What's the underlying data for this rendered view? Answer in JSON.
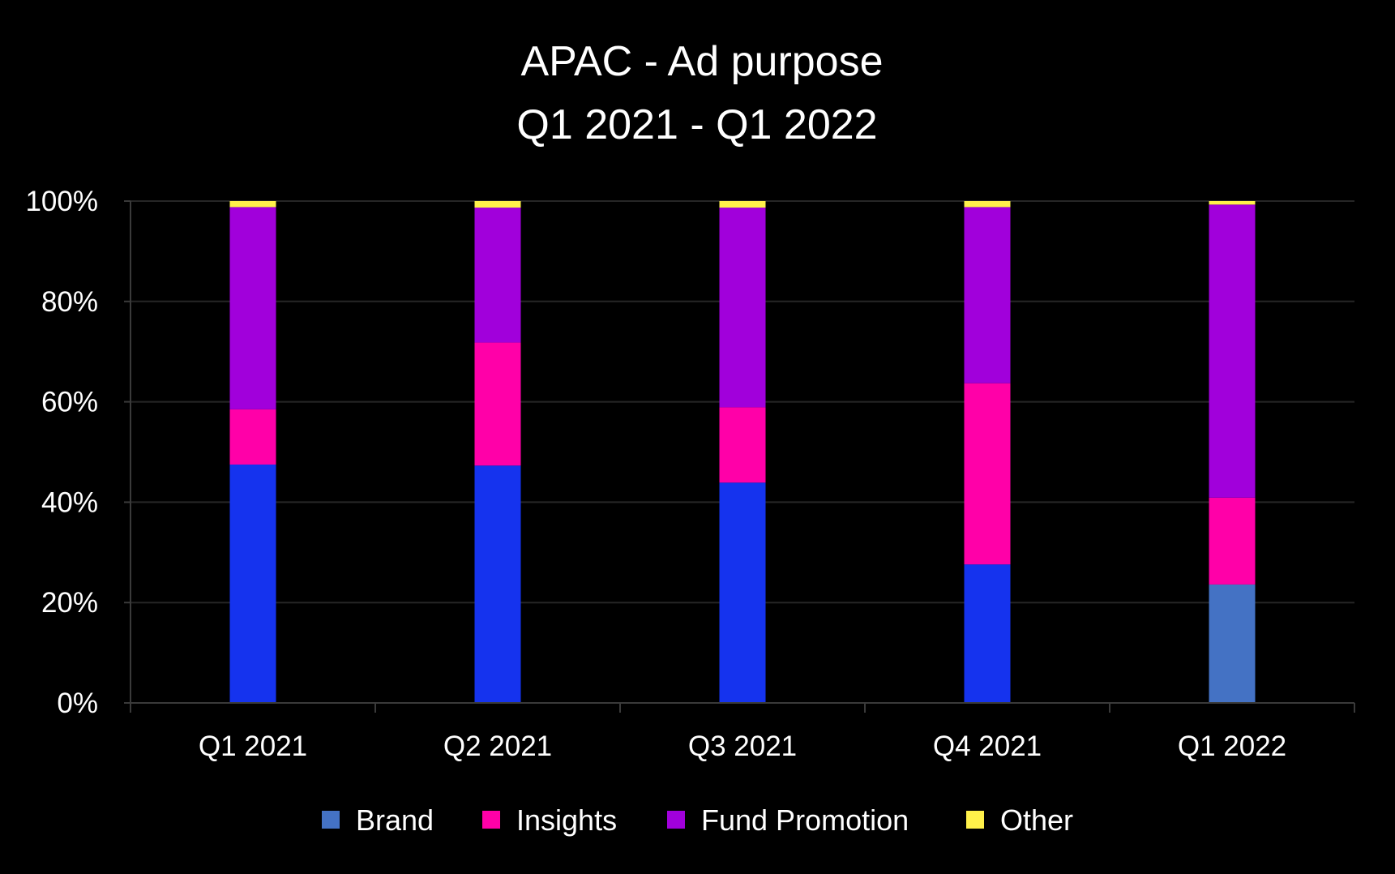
{
  "chart_data": {
    "type": "bar",
    "stacked": true,
    "title": "APAC - Ad purpose",
    "subtitle": "Q1 2021 - Q1 2022",
    "xlabel": "",
    "ylabel": "",
    "ylim": [
      0,
      100
    ],
    "y_ticks": [
      "0%",
      "20%",
      "40%",
      "60%",
      "80%",
      "100%"
    ],
    "grid": true,
    "legend_position": "bottom",
    "categories": [
      "Q1 2021",
      "Q2 2021",
      "Q3 2021",
      "Q4 2021",
      "Q1 2022"
    ],
    "series": [
      {
        "name": "Brand",
        "color": "#4472C4",
        "values": [
          47.5,
          47.3,
          43.9,
          27.6,
          23.6
        ]
      },
      {
        "name": "Insights",
        "color": "#FF00A8",
        "values": [
          11.0,
          24.5,
          15.0,
          36.1,
          17.3
        ]
      },
      {
        "name": "Fund Promotion",
        "color": "#A100DB",
        "values": [
          40.3,
          26.9,
          39.8,
          35.1,
          58.4
        ]
      },
      {
        "name": "Other",
        "color": "#FFF14A",
        "values": [
          1.2,
          1.3,
          1.3,
          1.2,
          0.7
        ]
      }
    ],
    "bar_colors_override": {
      "Brand": [
        "#1533EE",
        "#1533EE",
        "#1533EE",
        "#1533EE",
        "#4472C4"
      ]
    }
  }
}
